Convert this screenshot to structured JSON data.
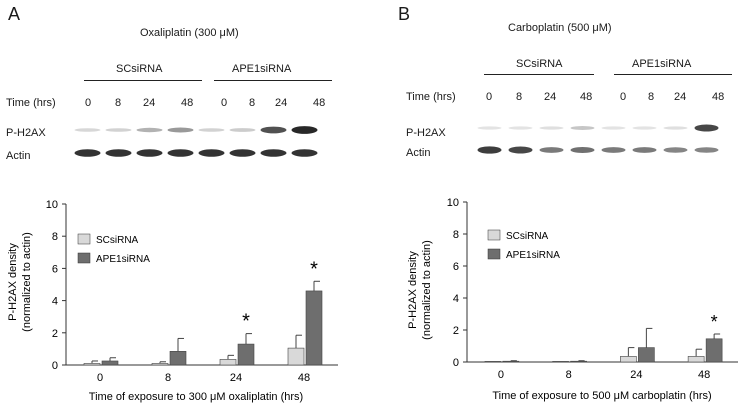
{
  "panels": [
    {
      "letter": "A",
      "treatment": "Oxaliplatin (300 μM)",
      "groups": [
        "SCsiRNA",
        "APE1siRNA"
      ],
      "time_label": "Time (hrs)",
      "times": [
        "0",
        "8",
        "24",
        "48",
        "0",
        "8",
        "24",
        "48"
      ],
      "row_labels": [
        "P-H2AX",
        "Actin"
      ],
      "legend": [
        "SCsiRNA",
        "APE1siRNA"
      ]
    },
    {
      "letter": "B",
      "treatment": "Carboplatin (500 μM)",
      "groups": [
        "SCsiRNA",
        "APE1siRNA"
      ],
      "time_label": "Time (hrs)",
      "times": [
        "0",
        "8",
        "24",
        "48",
        "0",
        "8",
        "24",
        "48"
      ],
      "row_labels": [
        "P-H2AX",
        "Actin"
      ],
      "legend": [
        "SCsiRNA",
        "APE1siRNA"
      ]
    }
  ],
  "colors": {
    "scsirna": "#d9d9d9",
    "ape1sirna": "#6e6e6e",
    "axis": "#333333"
  },
  "chart_data": [
    {
      "type": "bar",
      "title": "",
      "xlabel": "Time of exposure to 300 μM oxaliplatin (hrs)",
      "ylabel": [
        "P-H2AX density",
        "(normalized to actin)"
      ],
      "categories": [
        "0",
        "8",
        "24",
        "48"
      ],
      "ylim": [
        0,
        10
      ],
      "yticks": [
        0,
        2,
        4,
        6,
        8,
        10
      ],
      "series": [
        {
          "name": "SCsiRNA",
          "values": [
            0.1,
            0.1,
            0.35,
            1.05
          ],
          "errors": [
            0.15,
            0.1,
            0.25,
            0.8
          ]
        },
        {
          "name": "APE1siRNA",
          "values": [
            0.25,
            0.85,
            1.3,
            4.6
          ],
          "errors": [
            0.2,
            0.8,
            0.65,
            0.6
          ]
        }
      ],
      "significance": [
        "",
        "",
        "*",
        "*"
      ],
      "grid": false,
      "legend_position": "top-left"
    },
    {
      "type": "bar",
      "title": "",
      "xlabel": "Time of exposure to 500 μM carboplatin (hrs)",
      "ylabel": [
        "P-H2AX density",
        "(normalized to actin)"
      ],
      "categories": [
        "0",
        "8",
        "24",
        "48"
      ],
      "ylim": [
        0,
        10
      ],
      "yticks": [
        0,
        2,
        4,
        6,
        8,
        10
      ],
      "series": [
        {
          "name": "SCsiRNA",
          "values": [
            0.0,
            0.0,
            0.35,
            0.35
          ],
          "errors": [
            0.0,
            0.0,
            0.55,
            0.45
          ]
        },
        {
          "name": "APE1siRNA",
          "values": [
            0.05,
            0.05,
            0.9,
            1.45
          ],
          "errors": [
            0.03,
            0.03,
            1.2,
            0.3
          ]
        }
      ],
      "significance": [
        "",
        "",
        "",
        "*"
      ],
      "grid": false,
      "legend_position": "top-left"
    }
  ],
  "blots": [
    {
      "phospho": [
        0.1,
        0.12,
        0.28,
        0.4,
        0.12,
        0.15,
        0.75,
        0.95
      ],
      "actin": [
        0.9,
        0.9,
        0.9,
        0.9,
        0.9,
        0.9,
        0.9,
        0.9
      ]
    },
    {
      "phospho": [
        0.04,
        0.04,
        0.06,
        0.18,
        0.04,
        0.04,
        0.06,
        0.8
      ],
      "actin": [
        0.85,
        0.8,
        0.55,
        0.6,
        0.55,
        0.55,
        0.5,
        0.5
      ]
    }
  ]
}
